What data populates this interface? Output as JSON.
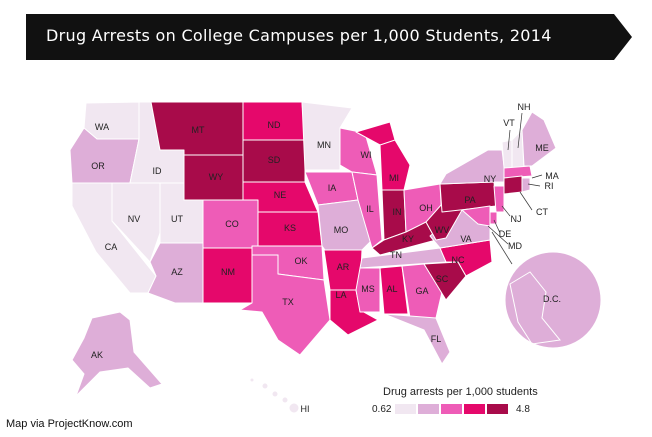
{
  "title": "Drug Arrests on College Campuses per 1,000 Students, 2014",
  "credit": "Map via ProjectKnow.com",
  "colors": {
    "banner": "#111111",
    "c1": "#f1e7f1",
    "c2": "#deaed8",
    "c3": "#ee5cb7",
    "c4": "#e5086b",
    "c5": "#a80b4a"
  },
  "legend": {
    "title": "Drug arrests per 1,000 students",
    "min_label": "0.62",
    "max_label": "4.8",
    "classes": [
      "c1",
      "c2",
      "c3",
      "c4",
      "c5"
    ]
  },
  "states": {
    "WA": "c1",
    "OR": "c2",
    "CA": "c1",
    "NV": "c1",
    "ID": "c1",
    "UT": "c1",
    "AZ": "c2",
    "MT": "c5",
    "WY": "c5",
    "CO": "c3",
    "NM": "c4",
    "ND": "c4",
    "SD": "c5",
    "NE": "c4",
    "KS": "c4",
    "OK": "c3",
    "TX": "c3",
    "MN": "c1",
    "IA": "c3",
    "MO": "c2",
    "AR": "c4",
    "LA": "c4",
    "WI": "c3",
    "IL": "c3",
    "MI": "c4",
    "IN": "c5",
    "OH": "c3",
    "KY": "c5",
    "TN": "c2",
    "MS": "c3",
    "AL": "c4",
    "GA": "c3",
    "FL": "c2",
    "SC": "c5",
    "NC": "c4",
    "VA": "c2",
    "WV": "c5",
    "PA": "c5",
    "NY": "c2",
    "VT": "c1",
    "NH": "c1",
    "ME": "c2",
    "MA": "c3",
    "RI": "c2",
    "CT": "c5",
    "NJ": "c3",
    "DE": "c3",
    "MD": "c3",
    "DC": "c2",
    "AK": "c2",
    "HI": "c1"
  }
}
